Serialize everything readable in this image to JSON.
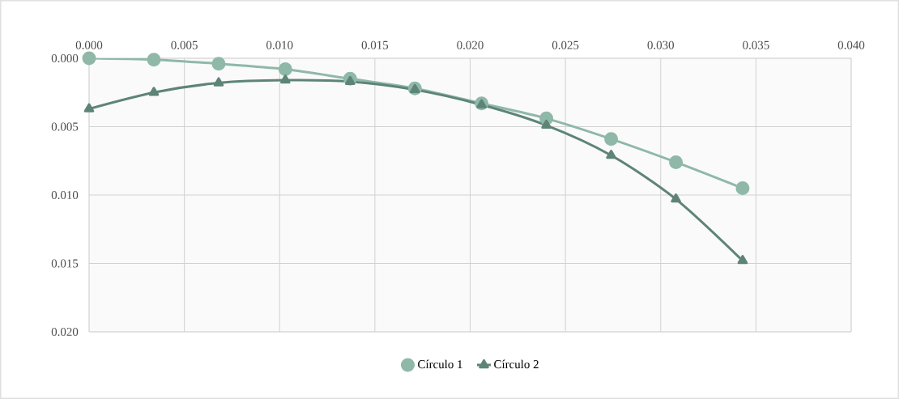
{
  "chart_data": {
    "type": "line",
    "x": [
      0,
      0.0034,
      0.0068,
      0.0103,
      0.0137,
      0.0171,
      0.0206,
      0.024,
      0.0274,
      0.0308,
      0.0343
    ],
    "series": [
      {
        "name": "Círculo 1",
        "color": "#8fb8a8",
        "marker": "circle",
        "values": [
          0,
          0.0001,
          0.0004,
          0.0008,
          0.0015,
          0.0022,
          0.0033,
          0.0044,
          0.0059,
          0.0076,
          0.0095
        ]
      },
      {
        "name": "Círculo 2",
        "color": "#5e8478",
        "marker": "triangle",
        "values": [
          0.0037,
          0.0025,
          0.0018,
          0.0016,
          0.0017,
          0.0023,
          0.0034,
          0.0049,
          0.0071,
          0.0103,
          0.0148
        ]
      }
    ],
    "xlim": [
      0,
      0.04
    ],
    "xticks": [
      {
        "value": 0,
        "label": "0.000"
      },
      {
        "value": 0.005,
        "label": "0.005"
      },
      {
        "value": 0.01,
        "label": "0.010"
      },
      {
        "value": 0.015,
        "label": "0.015"
      },
      {
        "value": 0.02,
        "label": "0.020"
      },
      {
        "value": 0.025,
        "label": "0.025"
      },
      {
        "value": 0.03,
        "label": "0.030"
      },
      {
        "value": 0.035,
        "label": "0.035"
      },
      {
        "value": 0.04,
        "label": "0.040"
      }
    ],
    "ylim": [
      0.02,
      0
    ],
    "yticks": [
      {
        "value": 0,
        "label": "0.000"
      },
      {
        "value": 0.005,
        "label": "0.005"
      },
      {
        "value": 0.01,
        "label": "0.010"
      },
      {
        "value": 0.015,
        "label": "0.015"
      },
      {
        "value": 0.02,
        "label": "0.020"
      }
    ],
    "grid": true,
    "legend": "bottom"
  }
}
